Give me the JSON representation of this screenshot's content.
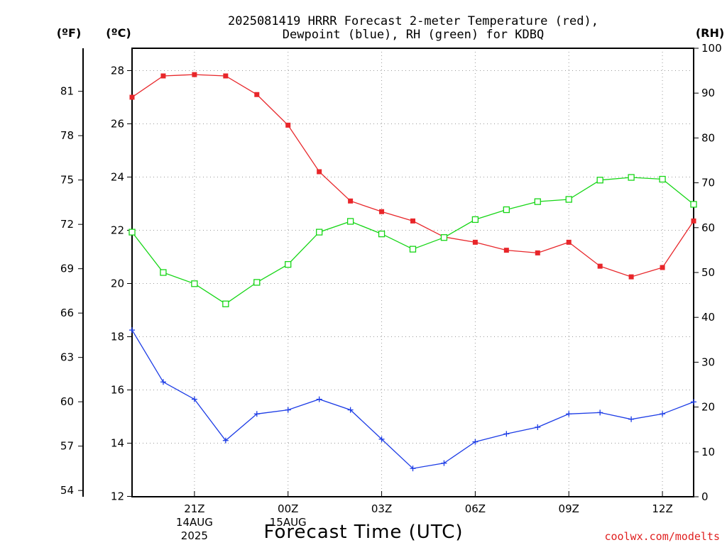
{
  "title_line1": "2025081419 HRRR Forecast 2-meter Temperature (red),",
  "title_line2": "Dewpoint (blue), RH (green) for KDBQ",
  "units": {
    "f": "(ºF)",
    "c": "(ºC)",
    "rh": "(RH)"
  },
  "xlabel": "Forecast Time (UTC)",
  "credit": "coolwx.com/modelts",
  "x_ticks": [
    {
      "label": "21Z",
      "sub1": "14AUG",
      "sub2": "2025",
      "hour": 2
    },
    {
      "label": "00Z",
      "sub1": "15AUG",
      "sub2": "",
      "hour": 5
    },
    {
      "label": "03Z",
      "sub1": "",
      "sub2": "",
      "hour": 8
    },
    {
      "label": "06Z",
      "sub1": "",
      "sub2": "",
      "hour": 11
    },
    {
      "label": "09Z",
      "sub1": "",
      "sub2": "",
      "hour": 14
    },
    {
      "label": "12Z",
      "sub1": "",
      "sub2": "",
      "hour": 17
    }
  ],
  "c_ticks": [
    "12",
    "14",
    "16",
    "18",
    "20",
    "22",
    "24",
    "26",
    "28"
  ],
  "f_ticks": [
    "54",
    "57",
    "60",
    "63",
    "66",
    "69",
    "72",
    "75",
    "78",
    "81"
  ],
  "rh_ticks": [
    "0",
    "10",
    "20",
    "30",
    "40",
    "50",
    "60",
    "70",
    "80",
    "90",
    "100"
  ],
  "colors": {
    "temp": "#e8262a",
    "dewpoint": "#1c3ce6",
    "rh": "#16d616"
  },
  "chart_data": {
    "type": "line",
    "x_unit": "forecast hour from 2025081419",
    "x": [
      0,
      1,
      2,
      3,
      4,
      5,
      6,
      7,
      8,
      9,
      10,
      11,
      12,
      13,
      14,
      15,
      16,
      17,
      18
    ],
    "xlim": [
      0,
      18
    ],
    "ylim_c": [
      12,
      29.3
    ],
    "ylim_rh": [
      0,
      100
    ],
    "series": [
      {
        "name": "2-meter Temperature (red)",
        "axis": "c",
        "marker": "filled-square",
        "values": [
          27.0,
          27.8,
          27.85,
          27.8,
          27.1,
          25.95,
          24.2,
          23.1,
          22.7,
          22.35,
          21.75,
          21.55,
          21.25,
          21.15,
          21.55,
          20.65,
          20.25,
          20.6,
          22.35
        ]
      },
      {
        "name": "Dewpoint (blue)",
        "axis": "c",
        "marker": "plus",
        "values": [
          18.25,
          16.3,
          15.65,
          14.1,
          15.1,
          15.25,
          15.65,
          15.25,
          14.15,
          13.05,
          13.25,
          14.05,
          14.35,
          14.6,
          15.1,
          15.15,
          14.9,
          15.1,
          15.55
        ]
      },
      {
        "name": "RH (green)",
        "axis": "rh",
        "marker": "open-square",
        "values": [
          59,
          50,
          47.5,
          43,
          47.8,
          51.8,
          59,
          61.4,
          58.6,
          55.2,
          57.8,
          61.8,
          64,
          65.8,
          66.3,
          70.6,
          71.2,
          70.8,
          65.2
        ]
      }
    ]
  }
}
